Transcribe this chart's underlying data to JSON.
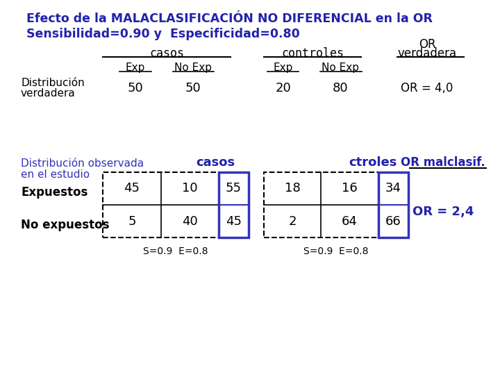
{
  "title_line1": "Efecto de la MALACLASIFICACIÓN NO DIFERENCIAL en la OR",
  "title_line2": "Sensibilidad=0.90 y  Especificidad=0.80",
  "title_color": "#2222AA",
  "title_fontsize": 12.5,
  "bg_color": "#FFFFFF",
  "header_casos": "casos",
  "header_controles": "controles",
  "header_or_verdadera_line1": "OR",
  "header_or_verdadera_line2": "verdadera",
  "subheader_exp": "Exp",
  "subheader_noexp": "No Exp",
  "dist_verdadera_label1": "Distribución",
  "dist_verdadera_label2": "verdadera",
  "casos_exp": "50",
  "casos_noexp": "50",
  "controles_exp": "20",
  "controles_noexp": "80",
  "or_verdadera": "OR = 4,0",
  "dist_observada_label1": "Distribución observada",
  "dist_observada_label2": "en el estudio",
  "dist_observada_color": "#3333BB",
  "obs_header_casos": "casos",
  "obs_header_ctroles": "ctroles",
  "obs_header_color": "#2222AA",
  "obs_or_label": "OR malclasif.",
  "obs_or_color": "#2222AA",
  "expuestos_label": "Expuestos",
  "no_expuestos_label": "No expuestos",
  "cell_casos_exp_exp": "45",
  "cell_casos_exp_noexp": "10",
  "cell_casos_total_exp": "55",
  "cell_casos_noexp_exp": "5",
  "cell_casos_noexp_noexp": "40",
  "cell_casos_total_noexp": "45",
  "cell_ctroles_exp_exp": "18",
  "cell_ctroles_exp_noexp": "16",
  "cell_ctroles_total_exp": "34",
  "cell_ctroles_noexp_exp": "2",
  "cell_ctroles_noexp_noexp": "64",
  "cell_ctroles_total_noexp": "66",
  "or_malclasif": "OR = 2,4",
  "footnote_casos": "S=0.9  E=0.8",
  "footnote_ctroles": "S=0.9  E=0.8",
  "solid_border_color": "#3333BB",
  "cell_fontsize": 13,
  "label_fontsize": 11
}
